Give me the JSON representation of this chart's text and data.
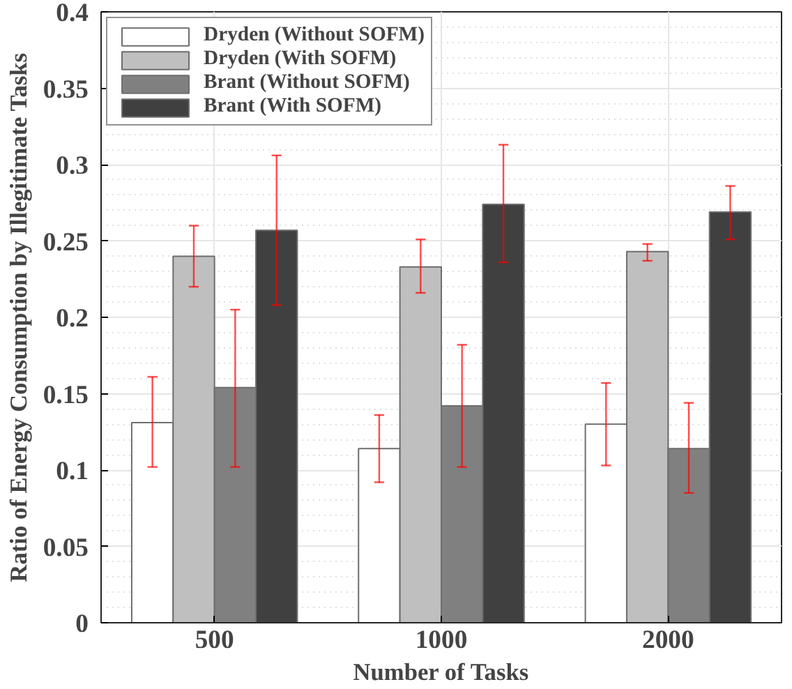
{
  "chart_data": {
    "type": "bar",
    "xlabel": "Number of Tasks",
    "ylabel": "Ratio of Energy Consumption by Illegitimate Tasks",
    "categories": [
      "500",
      "1000",
      "2000"
    ],
    "series": [
      {
        "name": "Dryden (Without SOFM)",
        "color": "#ffffff",
        "values": [
          0.131,
          0.114,
          0.13
        ],
        "errors": [
          [
            0.102,
            0.161
          ],
          [
            0.092,
            0.136
          ],
          [
            0.103,
            0.157
          ]
        ]
      },
      {
        "name": "Dryden (With SOFM)",
        "color": "#bfbfbf",
        "values": [
          0.24,
          0.233,
          0.243
        ],
        "errors": [
          [
            0.22,
            0.26
          ],
          [
            0.216,
            0.251
          ],
          [
            0.237,
            0.248
          ]
        ]
      },
      {
        "name": "Brant (Without SOFM)",
        "color": "#808080",
        "values": [
          0.154,
          0.142,
          0.114
        ],
        "errors": [
          [
            0.102,
            0.205
          ],
          [
            0.102,
            0.182
          ],
          [
            0.085,
            0.144
          ]
        ]
      },
      {
        "name": "Brant (With SOFM)",
        "color": "#404040",
        "values": [
          0.257,
          0.274,
          0.269
        ],
        "errors": [
          [
            0.208,
            0.306
          ],
          [
            0.236,
            0.313
          ],
          [
            0.251,
            0.286
          ]
        ]
      }
    ],
    "ylim": [
      0,
      0.4
    ],
    "yticks": [
      0,
      0.05,
      0.1,
      0.15,
      0.2,
      0.25,
      0.3,
      0.35,
      0.4
    ],
    "grid": true,
    "legend": "top left"
  }
}
